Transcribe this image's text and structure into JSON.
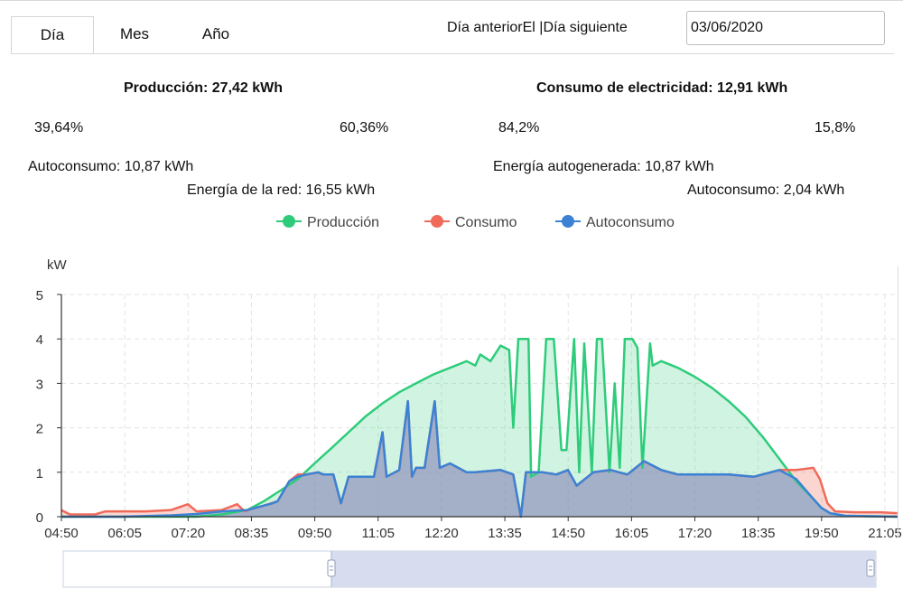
{
  "tabs": {
    "day": "Día",
    "month": "Mes",
    "year": "Año"
  },
  "nav": {
    "prev": "Día anteriorEl",
    "sep": " |",
    "next": "Día siguiente"
  },
  "date": {
    "value": "03/06/2020"
  },
  "production": {
    "title": "Producción: 27,42 kWh",
    "pct_self": "39,64%",
    "pct_grid": "60,36%",
    "self_label": "Autoconsumo: 10,87 kWh",
    "grid_label": "Energía de la red: 16,55 kWh"
  },
  "consumption": {
    "title": "Consumo de electricidad: 12,91 kWh",
    "pct_self": "84,2%",
    "pct_other": "15,8%",
    "self_label": "Energía autogenerada: 10,87 kWh",
    "other_label": "Autoconsumo: 2,04 kWh"
  },
  "colors": {
    "produccion": "#2ecc7a",
    "consumo": "#f06a5a",
    "autoconsumo": "#3b82d4",
    "slider": "#d7ddef"
  },
  "chart_data": {
    "type": "area",
    "ylabel": "kW",
    "ylim": [
      0,
      5
    ],
    "yticks": [
      "0",
      "1",
      "2",
      "3",
      "4",
      "5"
    ],
    "xticks": [
      "04:50",
      "06:05",
      "07:20",
      "08:35",
      "09:50",
      "11:05",
      "12:20",
      "13:35",
      "14:50",
      "16:05",
      "17:20",
      "18:35",
      "19:50",
      "21:05",
      "2"
    ],
    "x_range_hours": [
      4.8333,
      21.3333
    ],
    "grid": true,
    "legend_position": "top-center",
    "series": [
      {
        "name": "Producción",
        "color": "#2ecc7a",
        "points": [
          [
            4.83,
            0
          ],
          [
            7.5,
            0
          ],
          [
            8.0,
            0.05
          ],
          [
            8.5,
            0.15
          ],
          [
            8.83,
            0.35
          ],
          [
            9.17,
            0.6
          ],
          [
            9.5,
            0.85
          ],
          [
            9.83,
            1.2
          ],
          [
            10.17,
            1.55
          ],
          [
            10.5,
            1.9
          ],
          [
            10.83,
            2.25
          ],
          [
            11.17,
            2.55
          ],
          [
            11.5,
            2.8
          ],
          [
            11.83,
            3.0
          ],
          [
            12.17,
            3.2
          ],
          [
            12.5,
            3.35
          ],
          [
            12.83,
            3.5
          ],
          [
            13.0,
            3.4
          ],
          [
            13.1,
            3.65
          ],
          [
            13.3,
            3.5
          ],
          [
            13.5,
            3.85
          ],
          [
            13.67,
            3.75
          ],
          [
            13.75,
            2.0
          ],
          [
            13.85,
            4.0
          ],
          [
            14.05,
            4.0
          ],
          [
            14.1,
            0.9
          ],
          [
            14.25,
            1.0
          ],
          [
            14.4,
            4.0
          ],
          [
            14.55,
            4.0
          ],
          [
            14.7,
            1.5
          ],
          [
            14.8,
            1.5
          ],
          [
            14.95,
            4.0
          ],
          [
            15.05,
            1.0
          ],
          [
            15.15,
            3.9
          ],
          [
            15.3,
            1.0
          ],
          [
            15.4,
            4.0
          ],
          [
            15.5,
            4.0
          ],
          [
            15.65,
            1.0
          ],
          [
            15.75,
            3.0
          ],
          [
            15.85,
            1.1
          ],
          [
            15.95,
            4.0
          ],
          [
            16.1,
            4.0
          ],
          [
            16.2,
            3.8
          ],
          [
            16.3,
            1.1
          ],
          [
            16.45,
            3.9
          ],
          [
            16.5,
            3.4
          ],
          [
            16.67,
            3.5
          ],
          [
            17.0,
            3.35
          ],
          [
            17.33,
            3.15
          ],
          [
            17.67,
            2.9
          ],
          [
            18.0,
            2.6
          ],
          [
            18.33,
            2.25
          ],
          [
            18.67,
            1.8
          ],
          [
            19.0,
            1.3
          ],
          [
            19.33,
            0.8
          ],
          [
            19.67,
            0.4
          ],
          [
            19.83,
            0.2
          ],
          [
            20.0,
            0.08
          ],
          [
            20.3,
            0.02
          ],
          [
            21.33,
            0
          ]
        ]
      },
      {
        "name": "Consumo",
        "color": "#f06a5a",
        "points": [
          [
            4.83,
            0.15
          ],
          [
            5.0,
            0.05
          ],
          [
            5.5,
            0.05
          ],
          [
            5.7,
            0.12
          ],
          [
            6.0,
            0.12
          ],
          [
            6.5,
            0.12
          ],
          [
            7.0,
            0.15
          ],
          [
            7.33,
            0.28
          ],
          [
            7.5,
            0.12
          ],
          [
            8.0,
            0.15
          ],
          [
            8.3,
            0.28
          ],
          [
            8.45,
            0.12
          ],
          [
            8.6,
            0.18
          ],
          [
            8.83,
            0.25
          ],
          [
            9.1,
            0.35
          ],
          [
            9.33,
            0.8
          ],
          [
            9.5,
            0.95
          ],
          [
            9.67,
            0.95
          ],
          [
            9.9,
            1.0
          ],
          [
            10.0,
            0.95
          ],
          [
            10.2,
            0.95
          ],
          [
            10.35,
            0.3
          ],
          [
            10.5,
            0.9
          ],
          [
            10.8,
            0.9
          ],
          [
            11.0,
            0.9
          ],
          [
            11.17,
            1.9
          ],
          [
            11.25,
            0.9
          ],
          [
            11.5,
            1.05
          ],
          [
            11.67,
            2.6
          ],
          [
            11.75,
            0.9
          ],
          [
            11.83,
            1.1
          ],
          [
            12.0,
            1.1
          ],
          [
            12.2,
            2.6
          ],
          [
            12.3,
            1.1
          ],
          [
            12.5,
            1.2
          ],
          [
            12.83,
            1.0
          ],
          [
            13.0,
            1.0
          ],
          [
            13.5,
            1.05
          ],
          [
            13.75,
            0.95
          ],
          [
            13.9,
            0.0
          ],
          [
            14.0,
            1.0
          ],
          [
            14.33,
            1.0
          ],
          [
            14.6,
            0.95
          ],
          [
            14.83,
            1.05
          ],
          [
            15.0,
            0.7
          ],
          [
            15.33,
            1.0
          ],
          [
            15.67,
            1.05
          ],
          [
            16.0,
            0.95
          ],
          [
            16.33,
            1.25
          ],
          [
            16.5,
            1.15
          ],
          [
            16.67,
            1.05
          ],
          [
            17.0,
            0.95
          ],
          [
            17.5,
            0.95
          ],
          [
            18.0,
            0.95
          ],
          [
            18.5,
            0.9
          ],
          [
            19.0,
            1.05
          ],
          [
            19.33,
            1.05
          ],
          [
            19.67,
            1.1
          ],
          [
            19.8,
            0.85
          ],
          [
            19.95,
            0.3
          ],
          [
            20.1,
            0.12
          ],
          [
            20.5,
            0.1
          ],
          [
            21.0,
            0.1
          ],
          [
            21.33,
            0.08
          ]
        ]
      },
      {
        "name": "Autoconsumo",
        "color": "#3b82d4",
        "points": [
          [
            4.83,
            0
          ],
          [
            5.5,
            0
          ],
          [
            6.0,
            0
          ],
          [
            7.0,
            0.03
          ],
          [
            7.5,
            0.06
          ],
          [
            8.0,
            0.12
          ],
          [
            8.5,
            0.15
          ],
          [
            8.83,
            0.25
          ],
          [
            9.0,
            0.3
          ],
          [
            9.1,
            0.35
          ],
          [
            9.33,
            0.8
          ],
          [
            9.5,
            0.9
          ],
          [
            9.67,
            0.95
          ],
          [
            9.9,
            1.0
          ],
          [
            10.0,
            0.95
          ],
          [
            10.2,
            0.95
          ],
          [
            10.35,
            0.3
          ],
          [
            10.5,
            0.9
          ],
          [
            10.8,
            0.9
          ],
          [
            11.0,
            0.9
          ],
          [
            11.17,
            1.9
          ],
          [
            11.25,
            0.9
          ],
          [
            11.5,
            1.05
          ],
          [
            11.67,
            2.6
          ],
          [
            11.75,
            0.9
          ],
          [
            11.83,
            1.1
          ],
          [
            12.0,
            1.1
          ],
          [
            12.2,
            2.6
          ],
          [
            12.3,
            1.1
          ],
          [
            12.5,
            1.2
          ],
          [
            12.83,
            1.0
          ],
          [
            13.0,
            1.0
          ],
          [
            13.5,
            1.05
          ],
          [
            13.75,
            0.95
          ],
          [
            13.9,
            0.0
          ],
          [
            14.0,
            1.0
          ],
          [
            14.33,
            1.0
          ],
          [
            14.6,
            0.95
          ],
          [
            14.83,
            1.05
          ],
          [
            15.0,
            0.7
          ],
          [
            15.33,
            1.0
          ],
          [
            15.67,
            1.05
          ],
          [
            16.0,
            0.95
          ],
          [
            16.33,
            1.25
          ],
          [
            16.5,
            1.15
          ],
          [
            16.67,
            1.05
          ],
          [
            17.0,
            0.95
          ],
          [
            17.5,
            0.95
          ],
          [
            18.0,
            0.95
          ],
          [
            18.5,
            0.9
          ],
          [
            19.0,
            1.05
          ],
          [
            19.33,
            0.85
          ],
          [
            19.67,
            0.4
          ],
          [
            19.83,
            0.2
          ],
          [
            20.0,
            0.08
          ],
          [
            20.3,
            0.02
          ],
          [
            21.33,
            0
          ]
        ]
      }
    ],
    "zoom_range": [
      0.33,
      1.0
    ]
  }
}
